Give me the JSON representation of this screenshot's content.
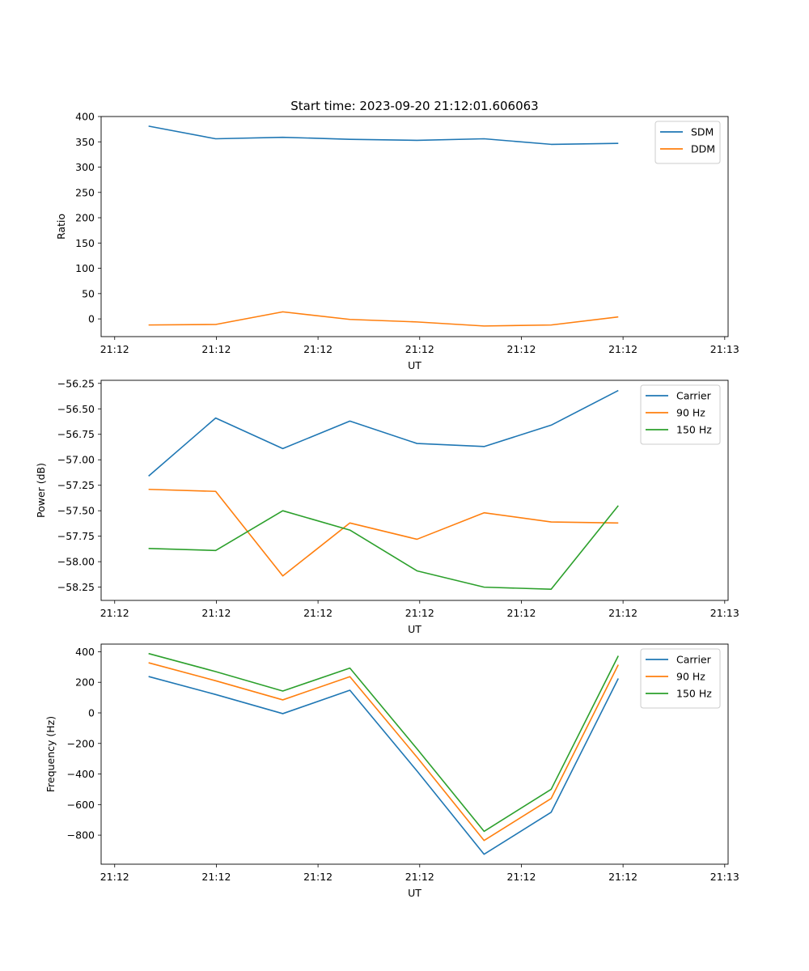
{
  "figure_title": "Start time: 2023-09-20 21:12:01.606063",
  "chart_data": [
    {
      "type": "line",
      "title": "Start time: 2023-09-20 21:12:01.606063",
      "xlabel": "UT",
      "ylabel": "Ratio",
      "xlim": [
        0,
        9.25
      ],
      "x": [
        0.7,
        1.69,
        2.68,
        3.67,
        4.66,
        5.65,
        6.64,
        7.63
      ],
      "xticks": [
        0.2,
        1.7,
        3.2,
        4.7,
        6.2,
        7.7,
        9.2
      ],
      "xtick_labels": [
        "21:12",
        "21:12",
        "21:12",
        "21:12",
        "21:12",
        "21:12",
        "21:13"
      ],
      "ylim": [
        -35,
        400
      ],
      "yticks": [
        0,
        50,
        100,
        150,
        200,
        250,
        300,
        350,
        400
      ],
      "ytick_labels": [
        "0",
        "50",
        "100",
        "150",
        "200",
        "250",
        "300",
        "350",
        "400"
      ],
      "legend": "top-right",
      "series": [
        {
          "name": "SDM",
          "color": "#1f77b4",
          "values": [
            381,
            356,
            359,
            355,
            353,
            356,
            345,
            347
          ]
        },
        {
          "name": "DDM",
          "color": "#ff7f0e",
          "values": [
            -12,
            -11,
            14,
            -1,
            -6,
            -14,
            -12,
            4
          ]
        }
      ]
    },
    {
      "type": "line",
      "title": "",
      "xlabel": "UT",
      "ylabel": "Power (dB)",
      "xlim": [
        0,
        9.25
      ],
      "x": [
        0.7,
        1.69,
        2.68,
        3.67,
        4.66,
        5.65,
        6.64,
        7.63
      ],
      "xticks": [
        0.2,
        1.7,
        3.2,
        4.7,
        6.2,
        7.7,
        9.2
      ],
      "xtick_labels": [
        "21:12",
        "21:12",
        "21:12",
        "21:12",
        "21:12",
        "21:12",
        "21:13"
      ],
      "ylim": [
        -58.38,
        -56.22
      ],
      "yticks": [
        -58.25,
        -58.0,
        -57.75,
        -57.5,
        -57.25,
        -57.0,
        -56.75,
        -56.5,
        -56.25
      ],
      "ytick_labels": [
        "−58.25",
        "−58.00",
        "−57.75",
        "−57.50",
        "−57.25",
        "−57.00",
        "−56.75",
        "−56.50",
        "−56.25"
      ],
      "legend": "top-right",
      "series": [
        {
          "name": "Carrier",
          "color": "#1f77b4",
          "values": [
            -57.16,
            -56.59,
            -56.89,
            -56.62,
            -56.84,
            -56.87,
            -56.66,
            -56.32
          ]
        },
        {
          "name": "90 Hz",
          "color": "#ff7f0e",
          "values": [
            -57.29,
            -57.31,
            -58.14,
            -57.62,
            -57.78,
            -57.52,
            -57.61,
            -57.62
          ]
        },
        {
          "name": "150 Hz",
          "color": "#2ca02c",
          "values": [
            -57.87,
            -57.89,
            -57.5,
            -57.69,
            -58.09,
            -58.25,
            -58.27,
            -57.45
          ]
        }
      ]
    },
    {
      "type": "line",
      "title": "",
      "xlabel": "UT",
      "ylabel": "Frequency (Hz)",
      "xlim": [
        0,
        9.25
      ],
      "x": [
        0.7,
        1.69,
        2.68,
        3.67,
        4.66,
        5.65,
        6.64,
        7.63
      ],
      "xticks": [
        0.2,
        1.7,
        3.2,
        4.7,
        6.2,
        7.7,
        9.2
      ],
      "xtick_labels": [
        "21:12",
        "21:12",
        "21:12",
        "21:12",
        "21:12",
        "21:12",
        "21:13"
      ],
      "ylim": [
        -990,
        450
      ],
      "yticks": [
        -800,
        -600,
        -400,
        -200,
        0,
        200,
        400
      ],
      "ytick_labels": [
        "−800",
        "−600",
        "−400",
        "−200",
        "0",
        "200",
        "400"
      ],
      "legend": "top-right",
      "series": [
        {
          "name": "Carrier",
          "color": "#1f77b4",
          "values": [
            238,
            120,
            -5,
            148,
            -380,
            -925,
            -650,
            225
          ]
        },
        {
          "name": "90 Hz",
          "color": "#ff7f0e",
          "values": [
            328,
            210,
            85,
            237,
            -290,
            -835,
            -560,
            315
          ]
        },
        {
          "name": "150 Hz",
          "color": "#2ca02c",
          "values": [
            388,
            270,
            143,
            293,
            -235,
            -775,
            -500,
            373
          ]
        }
      ]
    }
  ]
}
